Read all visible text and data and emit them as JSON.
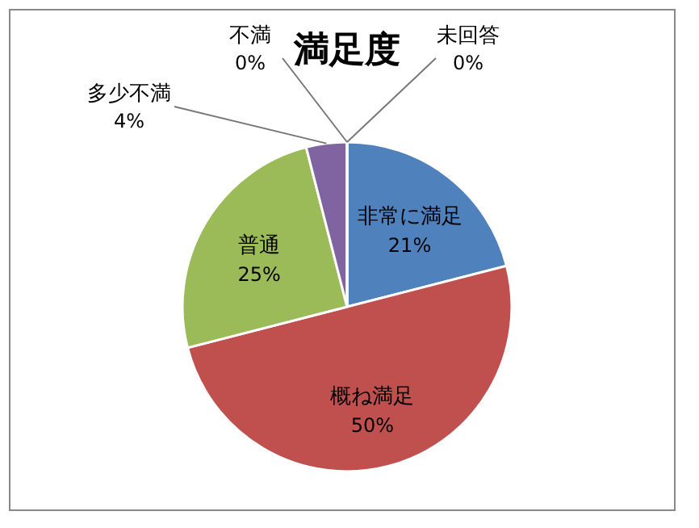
{
  "chart_data": {
    "type": "pie",
    "title": "満足度",
    "categories": [
      "非常に満足",
      "概ね満足",
      "普通",
      "多少不満",
      "不満",
      "未回答"
    ],
    "values": [
      21,
      50,
      25,
      4,
      0,
      0
    ],
    "colors": [
      "#4f81bd",
      "#c0504d",
      "#9bbb59",
      "#8064a2",
      "#4bacc6",
      "#f79646"
    ],
    "value_labels": [
      "21%",
      "50%",
      "25%",
      "4%",
      "0%",
      "0%"
    ]
  }
}
